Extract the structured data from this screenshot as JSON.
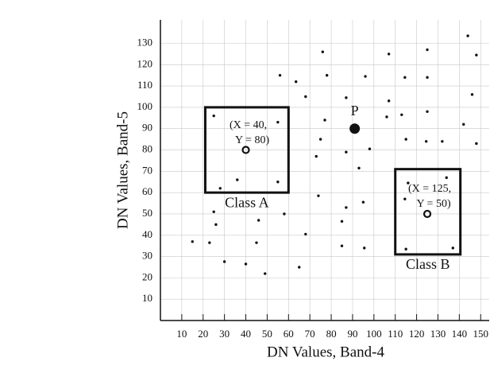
{
  "chart_data": {
    "type": "scatter",
    "x_label": "DN Values, Band-4",
    "y_label": "DN Values, Band-5",
    "xlim": [
      0,
      154
    ],
    "ylim": [
      0,
      141
    ],
    "xticks": [
      10,
      20,
      30,
      40,
      50,
      60,
      70,
      80,
      90,
      100,
      110,
      120,
      130,
      140,
      150
    ],
    "yticks": [
      10,
      20,
      30,
      40,
      50,
      60,
      70,
      80,
      90,
      100,
      110,
      120,
      130
    ],
    "grid": true,
    "points": {
      "color": "#111111",
      "x": [
        15,
        23,
        25,
        25,
        26,
        28,
        30,
        36,
        40,
        46,
        45,
        49,
        55,
        55,
        58,
        56,
        63.5,
        65,
        68,
        68,
        76,
        78,
        77,
        73,
        75,
        74,
        87,
        87,
        85,
        87,
        85,
        93,
        96,
        98,
        95,
        95.5,
        107,
        107,
        106,
        113,
        114.5,
        115,
        125,
        125,
        125,
        124.5,
        132,
        144,
        148,
        146,
        142,
        148,
        116,
        114.5,
        134,
        115,
        137
      ],
      "y": [
        37,
        36.5,
        96,
        51,
        45,
        62,
        27.6,
        66,
        26.5,
        47,
        36.5,
        22,
        93,
        65,
        50,
        115,
        112,
        25,
        105,
        40.5,
        126,
        115,
        94,
        77,
        85,
        58.5,
        104.5,
        79,
        46.5,
        53,
        35,
        71.5,
        114.5,
        80.5,
        55.5,
        34,
        125,
        103,
        95.5,
        96.5,
        114,
        85,
        127,
        114,
        98,
        84,
        84,
        133.5,
        124.5,
        106,
        92,
        83,
        64.5,
        57,
        67,
        33.5,
        34
      ]
    },
    "pixel": {
      "label": "P",
      "x": 91,
      "y": 90,
      "color": "#111111"
    },
    "classes": [
      {
        "name": "Class A",
        "mean_x": 40,
        "mean_y": 80,
        "mean_label": [
          "(X = 40,",
          "Y = 80)"
        ],
        "box_x": [
          21,
          60
        ],
        "box_y": [
          60,
          100
        ]
      },
      {
        "name": "Class B",
        "mean_x": 125,
        "mean_y": 50,
        "mean_label": [
          "(X = 125,",
          "Y = 50)"
        ],
        "box_x": [
          110,
          140.5
        ],
        "box_y": [
          31,
          71
        ]
      }
    ]
  }
}
